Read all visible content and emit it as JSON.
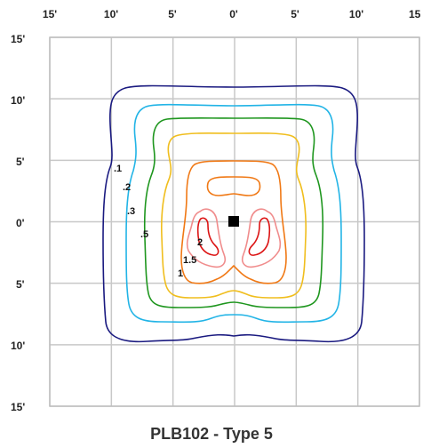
{
  "title": "PLB102 - Type 5",
  "x_ticks": [
    "15'",
    "10'",
    "5'",
    "0'",
    "5'",
    "10'",
    "15"
  ],
  "y_ticks": [
    "15'",
    "10'",
    "5'",
    "0'",
    "5'",
    "10'",
    "15'"
  ],
  "contour_labels": [
    ".1",
    ".2",
    ".3",
    ".5",
    "2",
    "1.5",
    "1"
  ],
  "colors": {
    "c01": "#1a1a80",
    "c02": "#22b4e6",
    "c03": "#1e961e",
    "c05": "#f0be1e",
    "c1": "#f07814",
    "c15": "#f08c8c",
    "c2": "#dc1414",
    "grid": "#c8c8c8",
    "frame": "#bfbfbf"
  },
  "chart_data": {
    "type": "contour",
    "xlim": [
      -15,
      15
    ],
    "ylim": [
      -15,
      15
    ],
    "grid": true,
    "fixture_position": [
      0,
      0
    ],
    "contour_levels": [
      0.1,
      0.2,
      0.3,
      0.5,
      1,
      1.5,
      2
    ]
  }
}
